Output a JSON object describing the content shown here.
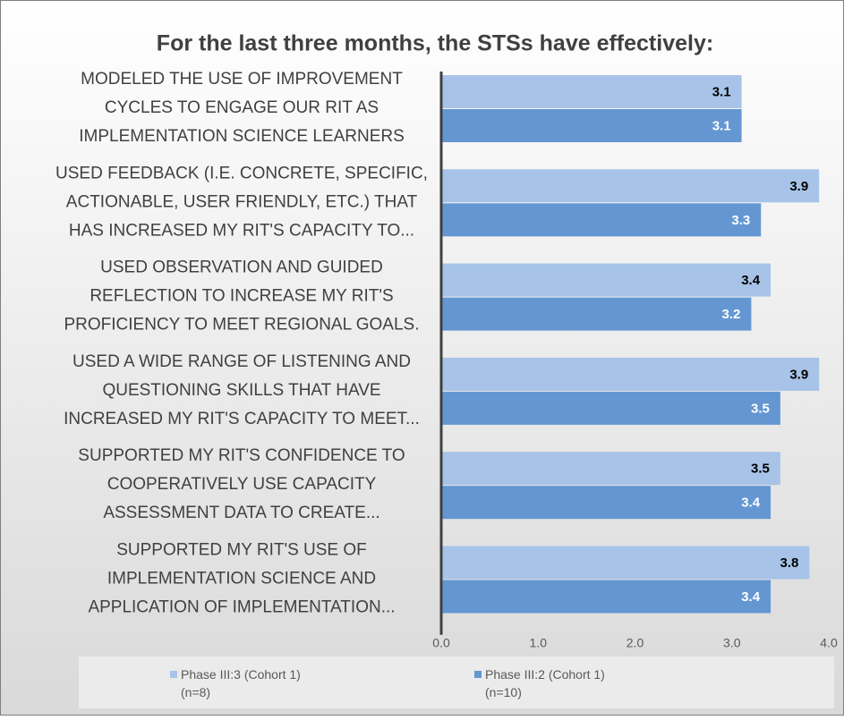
{
  "chart_data": {
    "type": "bar",
    "orientation": "horizontal",
    "title": "For the last three months, the STSs have effectively:",
    "categories": [
      [
        "MODELED THE USE OF IMPROVEMENT",
        "CYCLES TO ENGAGE OUR RIT AS",
        "IMPLEMENTATION SCIENCE LEARNERS"
      ],
      [
        "USED FEEDBACK (I.E. CONCRETE, SPECIFIC,",
        "ACTIONABLE, USER FRIENDLY, ETC.) THAT",
        "HAS INCREASED MY RIT'S CAPACITY TO..."
      ],
      [
        "USED OBSERVATION AND GUIDED",
        "REFLECTION TO INCREASE MY RIT'S",
        "PROFICIENCY TO MEET REGIONAL GOALS."
      ],
      [
        "USED A WIDE RANGE OF  LISTENING AND",
        "QUESTIONING SKILLS THAT HAVE",
        "INCREASED MY RIT'S CAPACITY TO MEET..."
      ],
      [
        "SUPPORTED MY RIT'S CONFIDENCE TO",
        "COOPERATIVELY USE CAPACITY",
        "ASSESSMENT DATA TO CREATE..."
      ],
      [
        "SUPPORTED MY RIT'S USE OF",
        "IMPLEMENTATION SCIENCE AND",
        "APPLICATION OF IMPLEMENTATION..."
      ]
    ],
    "series": [
      {
        "name": "Phase III:3 (Cohort 1) (n=8)",
        "color": "#a7c3e8",
        "values": [
          3.1,
          3.9,
          3.4,
          3.9,
          3.5,
          3.8
        ]
      },
      {
        "name": "Phase III:2 (Cohort 1) (n=10)",
        "color": "#6497d2",
        "values": [
          3.1,
          3.3,
          3.2,
          3.5,
          3.4,
          3.4
        ]
      }
    ],
    "xlim": [
      0,
      4
    ],
    "xticks": [
      {
        "value": 0,
        "label": "0.0"
      },
      {
        "value": 1,
        "label": "1.0"
      },
      {
        "value": 2,
        "label": "2.0"
      },
      {
        "value": 3,
        "label": "3.0"
      },
      {
        "value": 4,
        "label": "4.0"
      }
    ],
    "legend": "bottom"
  }
}
